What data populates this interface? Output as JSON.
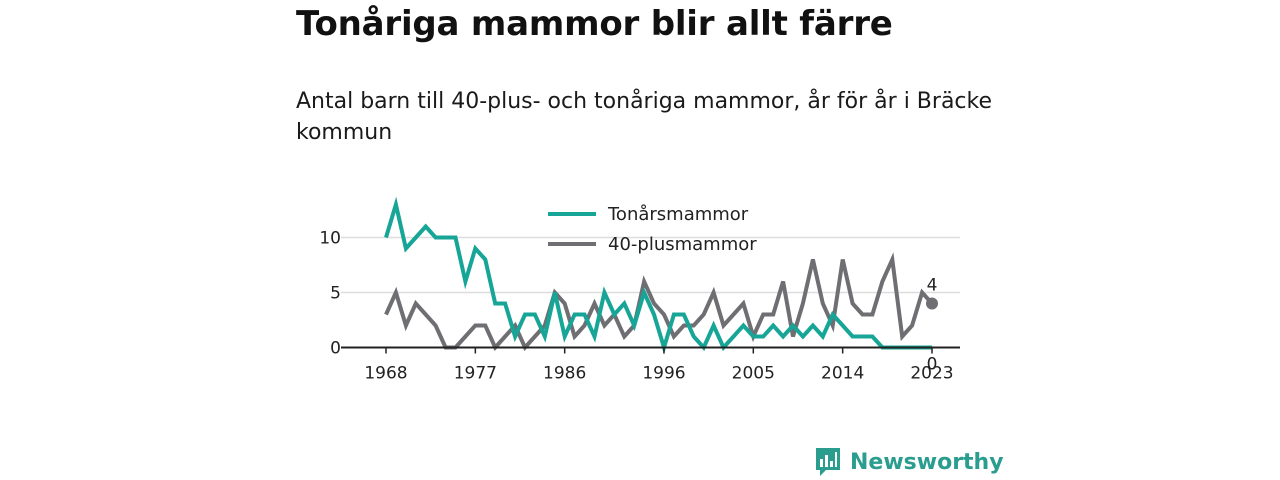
{
  "title": "Tonåriga mammor blir allt färre",
  "subtitle": "Antal barn till 40-plus- och tonåriga mammor, år för år i Bräcke kommun",
  "brand": {
    "name": "Newsworthy",
    "icon": "newsworthy-logo-icon"
  },
  "colors": {
    "teal": "#16a596",
    "gray": "#6e6e73",
    "grid": "#dddddd",
    "axis": "#222222"
  },
  "chart_data": {
    "type": "line",
    "x": [
      1968,
      1969,
      1970,
      1971,
      1972,
      1973,
      1974,
      1975,
      1976,
      1977,
      1978,
      1979,
      1980,
      1981,
      1982,
      1983,
      1984,
      1985,
      1986,
      1987,
      1988,
      1989,
      1990,
      1991,
      1992,
      1993,
      1994,
      1995,
      1996,
      1997,
      1998,
      1999,
      2000,
      2001,
      2002,
      2003,
      2004,
      2005,
      2006,
      2007,
      2008,
      2009,
      2010,
      2011,
      2012,
      2013,
      2014,
      2015,
      2016,
      2017,
      2018,
      2019,
      2020,
      2021,
      2022,
      2023
    ],
    "series": [
      {
        "name": "Tonårsmammor",
        "color": "#16a596",
        "values": [
          10,
          13,
          9,
          10,
          11,
          10,
          10,
          10,
          6,
          9,
          8,
          4,
          4,
          1,
          3,
          3,
          1,
          5,
          1,
          3,
          3,
          1,
          5,
          3,
          4,
          2,
          5,
          3,
          0,
          3,
          3,
          1,
          0,
          2,
          0,
          1,
          2,
          1,
          1,
          2,
          1,
          2,
          1,
          2,
          1,
          3,
          2,
          1,
          1,
          1,
          0,
          0,
          0,
          0,
          0,
          0
        ]
      },
      {
        "name": "40-plusmammor",
        "color": "#6e6e73",
        "values": [
          3,
          5,
          2,
          4,
          3,
          2,
          0,
          0,
          1,
          2,
          2,
          0,
          1,
          2,
          0,
          1,
          2,
          5,
          4,
          1,
          2,
          4,
          2,
          3,
          1,
          2,
          6,
          4,
          3,
          1,
          2,
          2,
          3,
          5,
          2,
          3,
          4,
          1,
          3,
          3,
          6,
          1,
          4,
          8,
          4,
          2,
          8,
          4,
          3,
          3,
          6,
          8,
          1,
          2,
          5,
          4
        ]
      }
    ],
    "x_ticks": [
      1968,
      1977,
      1986,
      1996,
      2005,
      2014,
      2023
    ],
    "y_ticks": [
      0,
      5,
      10
    ],
    "ylim": [
      0,
      13
    ],
    "end_labels": [
      {
        "series": "40-plusmammor",
        "text": "4"
      },
      {
        "series": "Tonårsmammor",
        "text": "0"
      }
    ],
    "legend_position": "top-center",
    "grid": "horizontal",
    "xlabel": "",
    "ylabel": ""
  }
}
